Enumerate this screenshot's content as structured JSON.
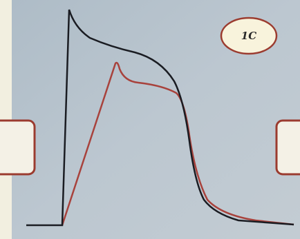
{
  "label": "1C"
}
